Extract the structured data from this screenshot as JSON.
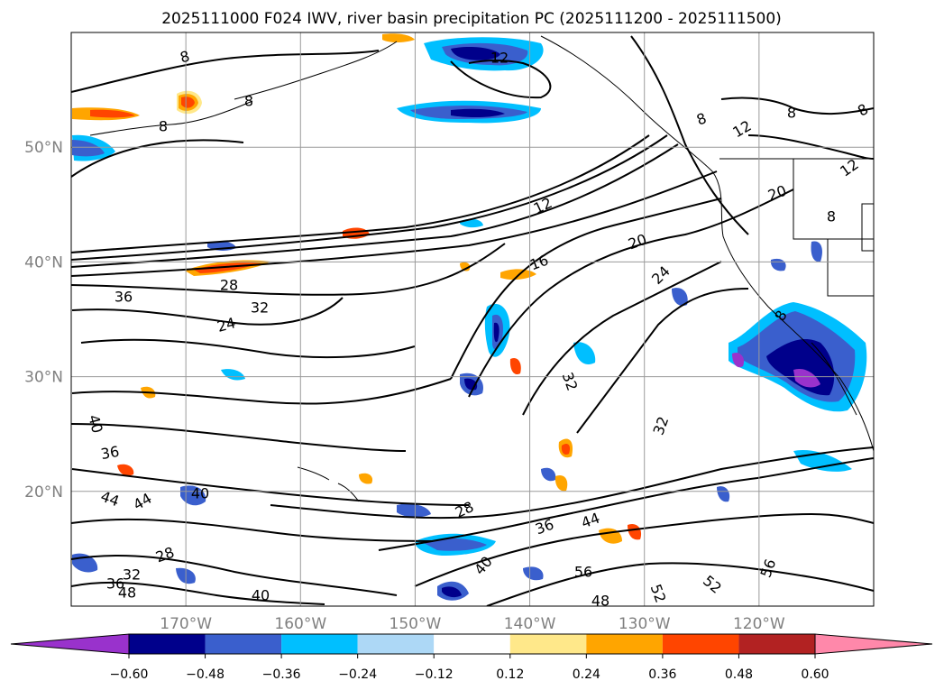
{
  "title": "2025111000 F024 IWV, river basin precipitation PC (2025111200 - 2025111500)",
  "map": {
    "lat_ticks": [
      {
        "value": 50,
        "label": "50°N"
      },
      {
        "value": 40,
        "label": "40°N"
      },
      {
        "value": 30,
        "label": "30°N"
      },
      {
        "value": 20,
        "label": "20°N"
      }
    ],
    "lon_ticks": [
      {
        "value": -170,
        "label": "170°W"
      },
      {
        "value": -160,
        "label": "160°W"
      },
      {
        "value": -150,
        "label": "150°W"
      },
      {
        "value": -140,
        "label": "140°W"
      },
      {
        "value": -130,
        "label": "130°W"
      },
      {
        "value": -120,
        "label": "120°W"
      }
    ],
    "lon_range": [
      -180,
      -110
    ],
    "lat_range": [
      10,
      60
    ],
    "grid": true
  },
  "contour_labels": [
    "8",
    "8",
    "8",
    "8",
    "8",
    "8",
    "8",
    "8",
    "12",
    "12",
    "12",
    "12",
    "16",
    "20",
    "20",
    "24",
    "24",
    "28",
    "28",
    "28",
    "32",
    "32",
    "32",
    "32",
    "36",
    "36",
    "36",
    "36",
    "40",
    "40",
    "40",
    "40",
    "44",
    "44",
    "44",
    "48",
    "48",
    "52",
    "52",
    "56",
    "56"
  ],
  "colorbar": {
    "ticks": [
      "−0.60",
      "−0.48",
      "−0.36",
      "−0.24",
      "−0.12",
      "0.12",
      "0.24",
      "0.36",
      "0.48",
      "0.60"
    ],
    "colors": [
      "#9932cc",
      "#00008b",
      "#3a5fcd",
      "#00bfff",
      "#add8f6",
      "#ffffff",
      "#ffe88a",
      "#ffa500",
      "#ff4500",
      "#b22222",
      "#ff88aa"
    ],
    "extend": "both"
  }
}
